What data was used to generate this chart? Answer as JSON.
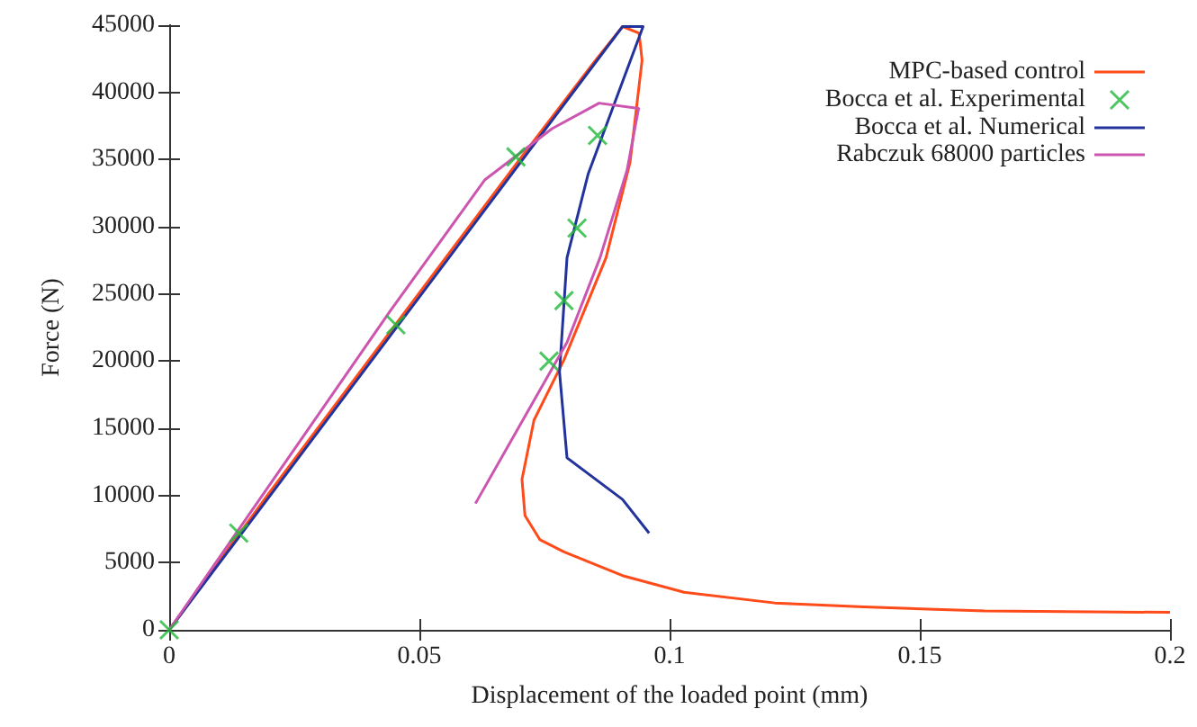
{
  "chart_data": {
    "type": "line",
    "xlabel": "Displacement of the loaded point (mm)",
    "ylabel": "Force (N)",
    "xlim": [
      0,
      0.2
    ],
    "xticks": [
      0,
      0.05,
      0.1,
      0.15,
      0.2
    ],
    "ylim": [
      0,
      45000
    ],
    "yticks": [
      0,
      5000,
      10000,
      15000,
      20000,
      25000,
      30000,
      35000,
      40000,
      45000
    ],
    "grid": false,
    "legend": "top right",
    "line_style": "solid",
    "series": [
      {
        "name": "MPC-based control",
        "color": "#ff4a1a",
        "marker": "none",
        "x": [
          0,
          0.02,
          0.045,
          0.07,
          0.085,
          0.0906,
          0.0939,
          0.0945,
          0.0921,
          0.0873,
          0.0789,
          0.0729,
          0.0705,
          0.0711,
          0.0741,
          0.0789,
          0.0909,
          0.1029,
          0.121,
          0.1388,
          0.163,
          0.2
        ],
        "values": [
          0,
          10200,
          22600,
          35000,
          42300,
          44900,
          44400,
          42400,
          34800,
          27700,
          20100,
          15600,
          11200,
          8500,
          6700,
          5800,
          4000,
          2800,
          2000,
          1700,
          1400,
          1300
        ]
      },
      {
        "name": "Bocca et al. Experimental",
        "color": "#1fb83a",
        "type": "scatter",
        "marker": "cross",
        "x": [
          0,
          0.0139,
          0.0453,
          0.0693,
          0.0856,
          0.0815,
          0.0789,
          0.0759
        ],
        "values": [
          0,
          7200,
          22700,
          35200,
          36800,
          29900,
          24500,
          20000
        ]
      },
      {
        "name": "Bocca et al. Numerical",
        "color": "#23339c",
        "marker": "none",
        "x": [
          0,
          0.0906,
          0.0947,
          0.0837,
          0.0795,
          0.078,
          0.0795,
          0.0906,
          0.0959
        ],
        "values": [
          0,
          44900,
          44900,
          33900,
          27700,
          19200,
          12800,
          9700,
          7200
        ]
      },
      {
        "name": "Rabczuk 68000 particles",
        "color": "#cc55b0",
        "marker": "none",
        "x": [
          0,
          0.0441,
          0.0631,
          0.0765,
          0.0859,
          0.0938,
          0.0915,
          0.0861,
          0.0795,
          0.0612
        ],
        "values": [
          0,
          23700,
          33500,
          37300,
          39200,
          38800,
          34200,
          27700,
          21400,
          9400
        ]
      }
    ]
  }
}
